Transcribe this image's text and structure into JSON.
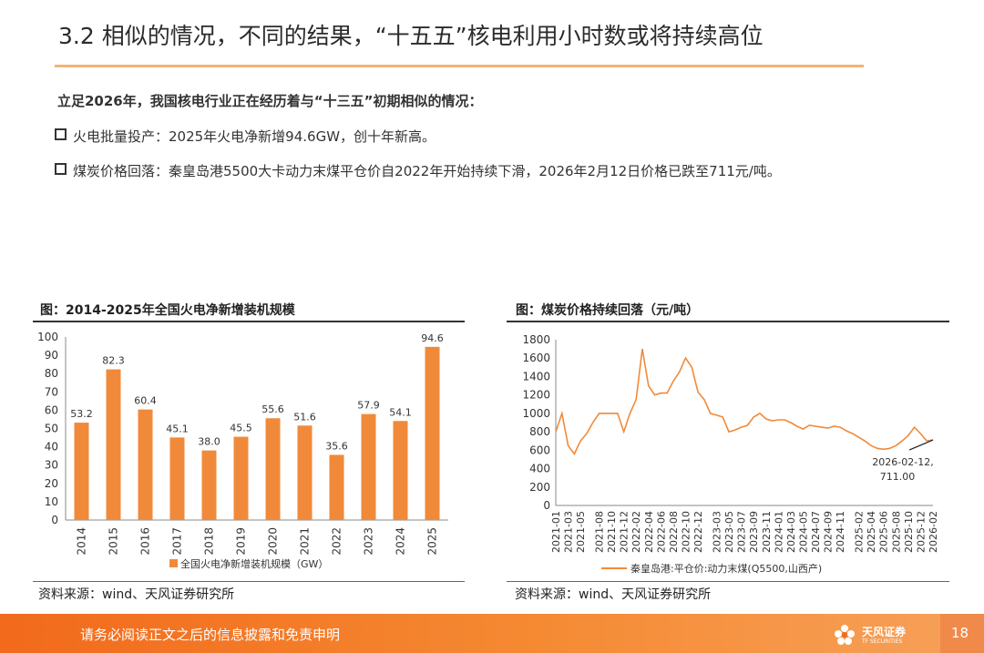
{
  "slide": {
    "title": "3.2 相似的情况，不同的结果，“十五五”核电利用小时数或将持续高位",
    "lead": "立足2026年，我国核电行业正在经历着与“十三五”初期相似的情况：",
    "bullets": [
      "火电批量投产：2025年火电净新增94.6GW，创十年新高。",
      "煤炭价格回落：秦皇岛港5500大卡动力末煤平仓价自2022年开始持续下滑，2026年2月12日价格已跌至711元/吨。"
    ],
    "footer_text": "请务必阅读正文之后的信息披露和免责申明",
    "logo_cn": "天风证券",
    "logo_en": "TF SECURITIES",
    "page_number": "18",
    "accent_color": "#f08a3a",
    "footer_color": "#f26a1c"
  },
  "chart_data": [
    {
      "type": "bar",
      "title": "图：2014-2025年全国火电净新增装机规模",
      "categories": [
        "2014",
        "2015",
        "2016",
        "2017",
        "2018",
        "2019",
        "2020",
        "2021",
        "2022",
        "2023",
        "2024",
        "2025"
      ],
      "series": [
        {
          "name": "全国火电净新增装机规模（GW）",
          "values": [
            53.2,
            82.3,
            60.4,
            45.1,
            38.0,
            45.5,
            55.6,
            51.6,
            35.6,
            57.9,
            54.1,
            94.6
          ],
          "labels": [
            "53.2",
            "82.3",
            "60.4",
            "45.1",
            "38.0",
            "45.5",
            "55.6",
            "51.6",
            "35.6",
            "57.9",
            "54.1",
            "94.6"
          ],
          "color": "#f08a3a"
        }
      ],
      "ylim": [
        0,
        100
      ],
      "yticks": [
        0,
        10,
        20,
        30,
        40,
        50,
        60,
        70,
        80,
        90,
        100
      ],
      "grid": false,
      "legend": "bottom",
      "source": "资料来源：wind、天风证券研究所"
    },
    {
      "type": "line",
      "title": "图：煤炭价格持续回落（元/吨）",
      "x_tick_labels": [
        "2021-01",
        "2021-03",
        "2021-05",
        "2021-08",
        "2021-10",
        "2021-12",
        "2022-02",
        "2022-04",
        "2022-06",
        "2022-08",
        "2022-10",
        "2022-12",
        "2023-03",
        "2023-05",
        "2023-07",
        "2023-09",
        "2023-11",
        "2024-01",
        "2024-03",
        "2024-05",
        "2024-07",
        "2024-09",
        "2024-11",
        "2025-02",
        "2025-04",
        "2025-06",
        "2025-08",
        "2025-10",
        "2025-12",
        "2026-02"
      ],
      "series": [
        {
          "name": "秦皇岛港:平仓价:动力末煤(Q5500,山西产)",
          "color": "#f08a3a",
          "x": [
            "2021-01",
            "2021-02",
            "2021-03",
            "2021-04",
            "2021-05",
            "2021-06",
            "2021-07",
            "2021-08",
            "2021-09",
            "2021-10",
            "2021-11",
            "2021-12",
            "2022-01",
            "2022-02",
            "2022-03",
            "2022-04",
            "2022-05",
            "2022-06",
            "2022-07",
            "2022-08",
            "2022-09",
            "2022-10",
            "2022-11",
            "2022-12",
            "2023-01",
            "2023-02",
            "2023-03",
            "2023-04",
            "2023-05",
            "2023-06",
            "2023-07",
            "2023-08",
            "2023-09",
            "2023-10",
            "2023-11",
            "2023-12",
            "2024-01",
            "2024-02",
            "2024-03",
            "2024-04",
            "2024-05",
            "2024-06",
            "2024-07",
            "2024-08",
            "2024-09",
            "2024-10",
            "2024-11",
            "2024-12",
            "2025-01",
            "2025-02",
            "2025-03",
            "2025-04",
            "2025-05",
            "2025-06",
            "2025-07",
            "2025-08",
            "2025-09",
            "2025-10",
            "2025-11",
            "2025-12",
            "2026-01",
            "2026-02"
          ],
          "y": [
            800,
            1000,
            650,
            560,
            700,
            780,
            900,
            1000,
            1000,
            1000,
            1000,
            800,
            1000,
            1150,
            1700,
            1300,
            1200,
            1220,
            1220,
            1350,
            1450,
            1600,
            1500,
            1230,
            1150,
            1000,
            980,
            960,
            800,
            820,
            850,
            870,
            960,
            1000,
            940,
            920,
            930,
            930,
            900,
            860,
            830,
            870,
            860,
            850,
            840,
            860,
            850,
            810,
            780,
            740,
            700,
            650,
            620,
            610,
            620,
            650,
            700,
            760,
            850,
            780,
            700,
            711
          ]
        }
      ],
      "ylim": [
        0,
        1800
      ],
      "yticks": [
        0,
        200,
        400,
        600,
        800,
        1000,
        1200,
        1400,
        1600,
        1800
      ],
      "annotation": {
        "date": "2026-02-12",
        "value": "711.00",
        "text_line1": "2026-02-12,",
        "text_line2": "711.00"
      },
      "grid": false,
      "legend": "bottom",
      "source": "资料来源：wind、天风证券研究所"
    }
  ]
}
